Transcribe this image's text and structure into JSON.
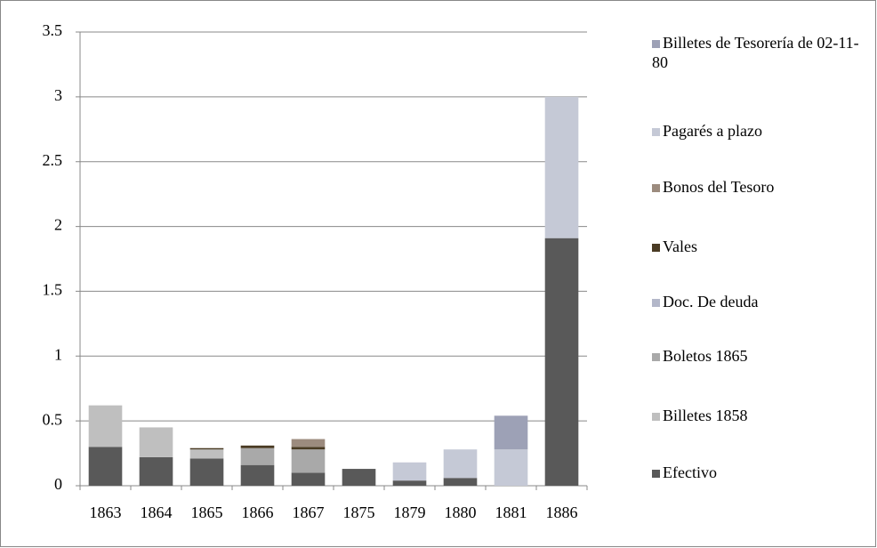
{
  "chart_data": {
    "type": "stacked_bar",
    "categories": [
      "1863",
      "1864",
      "1865",
      "1866",
      "1867",
      "1875",
      "1879",
      "1880",
      "1881",
      "1886"
    ],
    "series": [
      {
        "name": "Efectivo",
        "color": "#595959",
        "values": [
          0.3,
          0.22,
          0.21,
          0.16,
          0.1,
          0.13,
          0.04,
          0.06,
          0,
          1.91
        ]
      },
      {
        "name": "Billetes 1858",
        "color": "#bfbfbf",
        "values": [
          0.32,
          0.23,
          0.07,
          0,
          0,
          0,
          0,
          0,
          0,
          0
        ]
      },
      {
        "name": "Boletos 1865",
        "color": "#a9a9a9",
        "values": [
          0,
          0,
          0,
          0.13,
          0.18,
          0,
          0,
          0,
          0,
          0
        ]
      },
      {
        "name": "Doc. De deuda",
        "color": "#b3b7c9",
        "values": [
          0,
          0,
          0,
          0,
          0,
          0,
          0,
          0,
          0,
          0
        ]
      },
      {
        "name": "Vales",
        "color": "#4a3b24",
        "values": [
          0,
          0,
          0.01,
          0.02,
          0.02,
          0,
          0,
          0,
          0,
          0
        ]
      },
      {
        "name": "Bonos del Tesoro",
        "color": "#9c8b7e",
        "values": [
          0,
          0,
          0,
          0,
          0.06,
          0,
          0,
          0,
          0,
          0
        ]
      },
      {
        "name": "Pagarés a plazo",
        "color": "#c5c9d6",
        "values": [
          0,
          0,
          0,
          0,
          0,
          0,
          0.14,
          0.22,
          0.28,
          1.09
        ]
      },
      {
        "name": "Billetes de Tesorería  de 02-11-80",
        "color": "#9da1b6",
        "values": [
          0,
          0,
          0,
          0,
          0,
          0,
          0,
          0,
          0.26,
          0
        ]
      }
    ],
    "ylim": [
      0,
      3.5
    ],
    "yticks": [
      0,
      0.5,
      1,
      1.5,
      2,
      2.5,
      3,
      3.5
    ],
    "grid": true,
    "legend": "right"
  }
}
